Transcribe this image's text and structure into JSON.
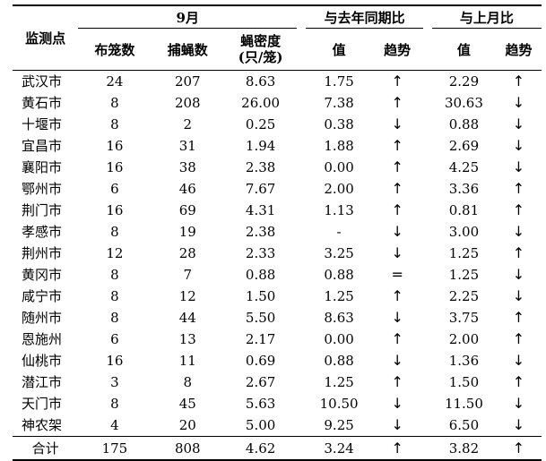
{
  "header": {
    "site": "监测点",
    "sep_group": "9月",
    "cage": "布笼数",
    "catch": "捕蝇数",
    "density_line1": "蝇密度",
    "density_line2": "(只/笼)",
    "yoy_group": "与去年同期比",
    "mom_group": "与上月比",
    "value": "值",
    "trend": "趋势"
  },
  "rows": [
    {
      "site": "武汉市",
      "cages": "24",
      "caught": "207",
      "density": "8.63",
      "yoy_value": "1.75",
      "yoy_trend": "↑",
      "mom_value": "2.29",
      "mom_trend": "↑"
    },
    {
      "site": "黄石市",
      "cages": "8",
      "caught": "208",
      "density": "26.00",
      "yoy_value": "7.38",
      "yoy_trend": "↑",
      "mom_value": "30.63",
      "mom_trend": "↓"
    },
    {
      "site": "十堰市",
      "cages": "8",
      "caught": "2",
      "density": "0.25",
      "yoy_value": "0.38",
      "yoy_trend": "↓",
      "mom_value": "0.88",
      "mom_trend": "↓"
    },
    {
      "site": "宜昌市",
      "cages": "16",
      "caught": "31",
      "density": "1.94",
      "yoy_value": "1.88",
      "yoy_trend": "↑",
      "mom_value": "2.69",
      "mom_trend": "↓"
    },
    {
      "site": "襄阳市",
      "cages": "16",
      "caught": "38",
      "density": "2.38",
      "yoy_value": "0.00",
      "yoy_trend": "↑",
      "mom_value": "4.25",
      "mom_trend": "↓"
    },
    {
      "site": "鄂州市",
      "cages": "6",
      "caught": "46",
      "density": "7.67",
      "yoy_value": "2.00",
      "yoy_trend": "↑",
      "mom_value": "3.36",
      "mom_trend": "↑"
    },
    {
      "site": "荆门市",
      "cages": "16",
      "caught": "69",
      "density": "4.31",
      "yoy_value": "1.13",
      "yoy_trend": "↑",
      "mom_value": "0.81",
      "mom_trend": "↑"
    },
    {
      "site": "孝感市",
      "cages": "8",
      "caught": "19",
      "density": "2.38",
      "yoy_value": "-",
      "yoy_trend": "↓",
      "mom_value": "3.00",
      "mom_trend": "↓"
    },
    {
      "site": "荆州市",
      "cages": "12",
      "caught": "28",
      "density": "2.33",
      "yoy_value": "3.25",
      "yoy_trend": "↓",
      "mom_value": "1.25",
      "mom_trend": "↑"
    },
    {
      "site": "黄冈市",
      "cages": "8",
      "caught": "7",
      "density": "0.88",
      "yoy_value": "0.88",
      "yoy_trend": "=",
      "mom_value": "1.25",
      "mom_trend": "↓"
    },
    {
      "site": "咸宁市",
      "cages": "8",
      "caught": "12",
      "density": "1.50",
      "yoy_value": "1.25",
      "yoy_trend": "↑",
      "mom_value": "2.25",
      "mom_trend": "↓"
    },
    {
      "site": "随州市",
      "cages": "8",
      "caught": "44",
      "density": "5.50",
      "yoy_value": "8.63",
      "yoy_trend": "↓",
      "mom_value": "3.75",
      "mom_trend": "↑"
    },
    {
      "site": "恩施州",
      "cages": "6",
      "caught": "13",
      "density": "2.17",
      "yoy_value": "0.00",
      "yoy_trend": "↑",
      "mom_value": "2.00",
      "mom_trend": "↑"
    },
    {
      "site": "仙桃市",
      "cages": "16",
      "caught": "11",
      "density": "0.69",
      "yoy_value": "0.88",
      "yoy_trend": "↓",
      "mom_value": "1.36",
      "mom_trend": "↓"
    },
    {
      "site": "潜江市",
      "cages": "3",
      "caught": "8",
      "density": "2.67",
      "yoy_value": "1.25",
      "yoy_trend": "↑",
      "mom_value": "1.50",
      "mom_trend": "↑"
    },
    {
      "site": "天门市",
      "cages": "8",
      "caught": "45",
      "density": "5.63",
      "yoy_value": "10.50",
      "yoy_trend": "↓",
      "mom_value": "11.50",
      "mom_trend": "↓"
    },
    {
      "site": "神农架",
      "cages": "4",
      "caught": "20",
      "density": "5.00",
      "yoy_value": "9.25",
      "yoy_trend": "↓",
      "mom_value": "6.50",
      "mom_trend": "↓"
    }
  ],
  "total": {
    "site": "合计",
    "cages": "175",
    "caught": "808",
    "density": "4.62",
    "yoy_value": "3.24",
    "yoy_trend": "↑",
    "mom_value": "3.82",
    "mom_trend": "↑"
  }
}
